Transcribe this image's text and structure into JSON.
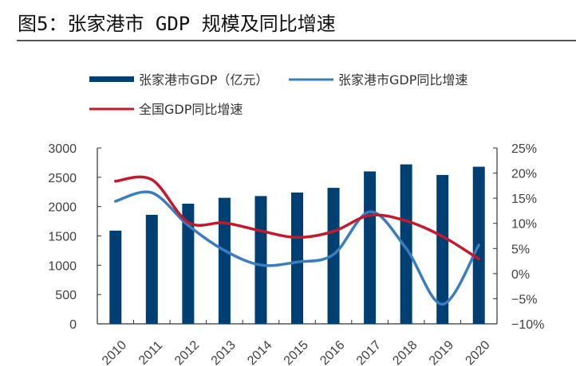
{
  "figure": {
    "title": "图5：张家港市 GDP 规模及同比增速"
  },
  "colors": {
    "bar": "#003f72",
    "zjg_growth": "#3a7dbf",
    "national_growth": "#c5182b",
    "axis": "#333333"
  },
  "chart_data": {
    "type": "bar",
    "title": "图5：张家港市 GDP 规模及同比增速",
    "categories": [
      "2010",
      "2011",
      "2012",
      "2013",
      "2014",
      "2015",
      "2016",
      "2017",
      "2018",
      "2019",
      "2020"
    ],
    "series": [
      {
        "name": "张家港市GDP（亿元）",
        "type": "bar",
        "axis": "left",
        "values": [
          1590,
          1860,
          2050,
          2150,
          2180,
          2240,
          2320,
          2600,
          2720,
          2540,
          2680
        ]
      },
      {
        "name": "张家港市GDP同比增速",
        "type": "line",
        "axis": "right",
        "unit": "%",
        "values": [
          14.4,
          16.1,
          9.6,
          4.6,
          1.7,
          2.3,
          3.8,
          12.3,
          5.0,
          -6.1,
          5.7
        ]
      },
      {
        "name": "全国GDP同比增速",
        "type": "line",
        "axis": "right",
        "unit": "%",
        "values": [
          18.4,
          18.7,
          10.2,
          10.1,
          8.5,
          7.2,
          8.4,
          11.6,
          10.5,
          7.4,
          2.9
        ]
      }
    ],
    "left_axis": {
      "ylim": [
        0,
        3000
      ],
      "ticks": [
        0,
        500,
        1000,
        1500,
        2000,
        2500,
        3000
      ],
      "tick_labels": [
        "0",
        "500",
        "1000",
        "1500",
        "2000",
        "2500",
        "3000"
      ]
    },
    "right_axis": {
      "ylim": [
        -10,
        25
      ],
      "ticks": [
        -10,
        -5,
        0,
        5,
        10,
        15,
        20,
        25
      ],
      "tick_labels": [
        "−10%",
        "−5%",
        "0%",
        "5%",
        "10%",
        "15%",
        "20%",
        "25%"
      ]
    },
    "xlabel": "",
    "ylabel": "",
    "grid": false,
    "legend_position": "top",
    "legend": [
      "张家港市GDP（亿元）",
      "张家港市GDP同比增速",
      "全国GDP同比增速"
    ]
  }
}
